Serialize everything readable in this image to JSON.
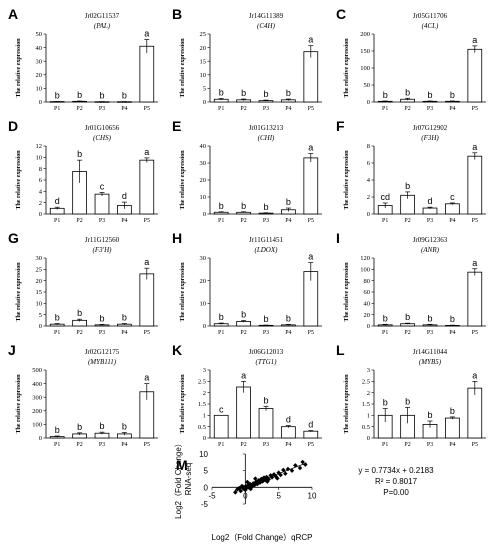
{
  "chart_data": [
    {
      "type": "bar",
      "panel": "A",
      "gene_id": "Jr02G11537",
      "gene_name": "(PAL)",
      "ylabel": "The relative expression",
      "categories": [
        "P1",
        "P2",
        "P3",
        "P4",
        "P5"
      ],
      "values": [
        0.3,
        0.5,
        0.2,
        0.2,
        41
      ],
      "errors": [
        0.1,
        0.2,
        0.1,
        0.1,
        5
      ],
      "letters": [
        "b",
        "b",
        "b",
        "b",
        "a"
      ],
      "yticks": [
        0,
        10,
        20,
        30,
        40,
        50
      ],
      "ylim": [
        0,
        50
      ]
    },
    {
      "type": "bar",
      "panel": "B",
      "gene_id": "Jr14G11389",
      "gene_name": "(C4H)",
      "ylabel": "The relative expression",
      "categories": [
        "P1",
        "P2",
        "P3",
        "P4",
        "P5"
      ],
      "values": [
        1,
        0.8,
        0.5,
        0.8,
        18.5
      ],
      "errors": [
        0.3,
        0.3,
        0.2,
        0.3,
        2.2
      ],
      "letters": [
        "b",
        "b",
        "b",
        "b",
        "a"
      ],
      "yticks": [
        0,
        5,
        10,
        15,
        20,
        25
      ],
      "ylim": [
        0,
        25
      ]
    },
    {
      "type": "bar",
      "panel": "C",
      "gene_id": "Jr05G11706",
      "gene_name": "(4CL)",
      "ylabel": "The relative expression",
      "categories": [
        "P1",
        "P2",
        "P3",
        "P4",
        "P5"
      ],
      "values": [
        2,
        8,
        2,
        2,
        155
      ],
      "errors": [
        1,
        3,
        1,
        1,
        10
      ],
      "letters": [
        "b",
        "b",
        "b",
        "b",
        "a"
      ],
      "yticks": [
        0,
        50,
        100,
        150,
        200
      ],
      "ylim": [
        0,
        200
      ]
    },
    {
      "type": "bar",
      "panel": "D",
      "gene_id": "Jr01G10656",
      "gene_name": "(CHS)",
      "ylabel": "The relative expression",
      "categories": [
        "P1",
        "P2",
        "P3",
        "P4",
        "P5"
      ],
      "values": [
        1,
        7.5,
        3.5,
        1.5,
        9.5
      ],
      "errors": [
        0.2,
        2,
        0.3,
        0.6,
        0.4
      ],
      "letters": [
        "d",
        "b",
        "c",
        "d",
        "a"
      ],
      "yticks": [
        0,
        2,
        4,
        6,
        8,
        10,
        12
      ],
      "ylim": [
        0,
        12
      ]
    },
    {
      "type": "bar",
      "panel": "E",
      "gene_id": "Jr01G13213",
      "gene_name": "(CHI)",
      "ylabel": "The relative expression",
      "categories": [
        "P1",
        "P2",
        "P3",
        "P4",
        "P5"
      ],
      "values": [
        1,
        1,
        0.5,
        2.5,
        33
      ],
      "errors": [
        0.3,
        0.3,
        0.2,
        1,
        2.5
      ],
      "letters": [
        "b",
        "b",
        "b",
        "b",
        "a"
      ],
      "yticks": [
        0,
        10,
        20,
        30,
        40
      ],
      "ylim": [
        0,
        40
      ]
    },
    {
      "type": "bar",
      "panel": "F",
      "gene_id": "Jr07G12902",
      "gene_name": "(F3H)",
      "ylabel": "The relative expression",
      "categories": [
        "P1",
        "P2",
        "P3",
        "P4",
        "P5"
      ],
      "values": [
        1,
        2.2,
        0.7,
        1.2,
        6.8
      ],
      "errors": [
        0.3,
        0.4,
        0.1,
        0.1,
        0.4
      ],
      "letters": [
        "cd",
        "b",
        "d",
        "c",
        "a"
      ],
      "yticks": [
        0,
        2,
        4,
        6,
        8
      ],
      "ylim": [
        0,
        8
      ]
    },
    {
      "type": "bar",
      "panel": "G",
      "gene_id": "Jr11G12560",
      "gene_name": "(F3'H)",
      "ylabel": "The relative expression",
      "categories": [
        "P1",
        "P2",
        "P3",
        "P4",
        "P5"
      ],
      "values": [
        0.8,
        2.5,
        0.5,
        0.8,
        23
      ],
      "errors": [
        0.3,
        0.5,
        0.2,
        0.3,
        2.5
      ],
      "letters": [
        "b",
        "b",
        "b",
        "b",
        "a"
      ],
      "yticks": [
        0,
        5,
        10,
        15,
        20,
        25,
        30
      ],
      "ylim": [
        0,
        30
      ]
    },
    {
      "type": "bar",
      "panel": "H",
      "gene_id": "Jr11G11451",
      "gene_name": "(LDOX)",
      "ylabel": "The relative expression",
      "categories": [
        "P1",
        "P2",
        "P3",
        "P4",
        "P5"
      ],
      "values": [
        1,
        2,
        0.3,
        0.5,
        24
      ],
      "errors": [
        0.3,
        0.4,
        0.1,
        0.2,
        4
      ],
      "letters": [
        "b",
        "b",
        "b",
        "b",
        "a"
      ],
      "yticks": [
        0,
        10,
        20,
        30
      ],
      "ylim": [
        0,
        30
      ]
    },
    {
      "type": "bar",
      "panel": "I",
      "gene_id": "Jr09G12363",
      "gene_name": "(ANR)",
      "ylabel": "The relative expression",
      "categories": [
        "P1",
        "P2",
        "P3",
        "P4",
        "P5"
      ],
      "values": [
        2,
        4,
        2,
        1,
        95
      ],
      "errors": [
        1,
        1,
        1,
        0.5,
        6
      ],
      "letters": [
        "b",
        "b",
        "b",
        "b",
        "a"
      ],
      "yticks": [
        0,
        20,
        40,
        60,
        80,
        100,
        120
      ],
      "ylim": [
        0,
        120
      ]
    },
    {
      "type": "bar",
      "panel": "J",
      "gene_id": "Jr02G12175",
      "gene_name": "(MYB111)",
      "ylabel": "The relative expression",
      "categories": [
        "P1",
        "P2",
        "P3",
        "P4",
        "P5"
      ],
      "values": [
        10,
        30,
        35,
        30,
        340
      ],
      "errors": [
        5,
        8,
        8,
        10,
        60
      ],
      "letters": [
        "b",
        "b",
        "b",
        "b",
        "a"
      ],
      "yticks": [
        0,
        100,
        200,
        300,
        400,
        500
      ],
      "ylim": [
        0,
        500
      ]
    },
    {
      "type": "bar",
      "panel": "K",
      "gene_id": "Jr06G12013",
      "gene_name": "(TTG1)",
      "ylabel": "The relative expression",
      "categories": [
        "P1",
        "P2",
        "P3",
        "P4",
        "P5"
      ],
      "values": [
        1,
        2.25,
        1.3,
        0.5,
        0.3
      ],
      "errors": [
        0,
        0.25,
        0.1,
        0.05,
        0.03
      ],
      "letters": [
        "c",
        "a",
        "b",
        "d",
        "d"
      ],
      "yticks": [
        0,
        0.5,
        1,
        1.5,
        2,
        2.5,
        3
      ],
      "ylim": [
        0,
        3
      ]
    },
    {
      "type": "bar",
      "panel": "L",
      "gene_id": "Jr14G11044",
      "gene_name": "(MYB5)",
      "ylabel": "The relative expression",
      "categories": [
        "P1",
        "P2",
        "P3",
        "P4",
        "P5"
      ],
      "values": [
        1,
        1,
        0.6,
        0.88,
        2.2
      ],
      "errors": [
        0.3,
        0.35,
        0.15,
        0.05,
        0.3
      ],
      "letters": [
        "b",
        "b",
        "b",
        "b",
        "a"
      ],
      "yticks": [
        0,
        0.5,
        1,
        1.5,
        2,
        2.5,
        3
      ],
      "ylim": [
        0,
        3
      ]
    },
    {
      "type": "scatter",
      "panel": "M",
      "xlabel": "Log2（Fold Change）qRCP",
      "ylabel_line1": "Log2（Fold Change）",
      "ylabel_line2": "RNA-seq",
      "xlim": [
        -5,
        10
      ],
      "ylim": [
        -5,
        10
      ],
      "xticks": [
        -5,
        0,
        5,
        10
      ],
      "yticks": [
        -5,
        0,
        5,
        10
      ],
      "trendline": {
        "slope": 0.7734,
        "intercept": 0.2183
      },
      "equation": "y = 0.7734x + 0.2183",
      "r2": "R² = 0.8017",
      "pvalue": "P=0.00",
      "points": [
        [
          -1.2,
          -0.6
        ],
        [
          -0.9,
          -0.2
        ],
        [
          -0.7,
          -1.1
        ],
        [
          -0.5,
          0.4
        ],
        [
          -0.3,
          -0.4
        ],
        [
          -0.2,
          0.1
        ],
        [
          0,
          -0.8
        ],
        [
          0.1,
          0.3
        ],
        [
          0.2,
          -0.2
        ],
        [
          0.4,
          0.6
        ],
        [
          0.5,
          0
        ],
        [
          0.7,
          1
        ],
        [
          0.8,
          -0.5
        ],
        [
          1,
          0.3
        ],
        [
          1.2,
          1.2
        ],
        [
          1.4,
          0.7
        ],
        [
          1.6,
          1.6
        ],
        [
          1.8,
          1
        ],
        [
          2,
          2.1
        ],
        [
          2.2,
          1.4
        ],
        [
          2.4,
          2.5
        ],
        [
          2.6,
          1.8
        ],
        [
          2.8,
          2.9
        ],
        [
          3,
          2.2
        ],
        [
          3.2,
          3.1
        ],
        [
          3.5,
          2.4
        ],
        [
          3.8,
          3.6
        ],
        [
          4,
          3
        ],
        [
          4.3,
          3.9
        ],
        [
          4.6,
          3.2
        ],
        [
          5,
          4.4
        ],
        [
          5.3,
          3.7
        ],
        [
          5.7,
          5.2
        ],
        [
          6,
          4.1
        ],
        [
          6.4,
          5.5
        ],
        [
          7,
          5
        ],
        [
          7.5,
          6.6
        ],
        [
          8.2,
          5.8
        ],
        [
          8.6,
          7.6
        ],
        [
          9,
          6.8
        ],
        [
          -1.5,
          -1.5
        ],
        [
          0.3,
          1.6
        ],
        [
          1.5,
          2.6
        ],
        [
          3.3,
          1.7
        ],
        [
          4.8,
          2.7
        ]
      ]
    }
  ]
}
